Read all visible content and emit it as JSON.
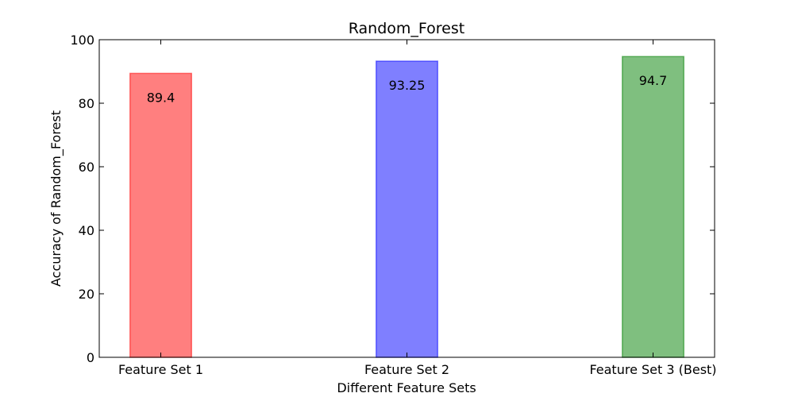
{
  "chart_data": {
    "type": "bar",
    "title": "Random_Forest",
    "xlabel": "Different Feature Sets",
    "ylabel": "Accuracy of Random_Forest",
    "categories": [
      "Feature Set 1",
      "Feature Set 2",
      "Feature Set 3 (Best)"
    ],
    "values": [
      89.4,
      93.25,
      94.7
    ],
    "data_labels": [
      "89.4",
      "93.25",
      "94.7"
    ],
    "ylim": [
      0,
      100
    ],
    "yticks": [
      0,
      20,
      40,
      60,
      80,
      100
    ],
    "ytick_labels": [
      "0",
      "20",
      "40",
      "60",
      "80",
      "100"
    ],
    "colors": [
      "#ff0000",
      "#0000ff",
      "#008000"
    ],
    "bar_opacity": 0.5,
    "grid": false,
    "legend": "none"
  }
}
